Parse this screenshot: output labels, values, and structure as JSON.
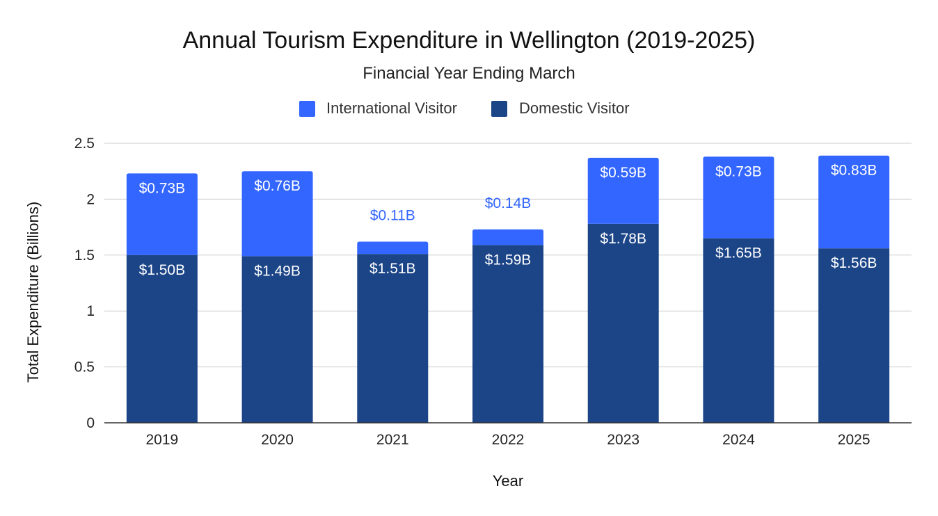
{
  "chart_data": {
    "type": "bar",
    "stacked": true,
    "title": "Annual Tourism Expenditure in Wellington (2019-2025)",
    "subtitle": "Financial Year Ending March",
    "xlabel": "Year",
    "ylabel": "Total Expenditure (Billions)",
    "ylim": [
      0,
      2.5
    ],
    "yticks": [
      0,
      0.5,
      1,
      1.5,
      2,
      2.5
    ],
    "ytick_labels": [
      "0",
      "0.5",
      "1",
      "1.5",
      "2",
      "2.5"
    ],
    "grid": true,
    "legend_position": "top",
    "categories": [
      "2019",
      "2020",
      "2021",
      "2022",
      "2023",
      "2024",
      "2025"
    ],
    "series": [
      {
        "name": "Domestic Visitor",
        "color": "#1c4587",
        "values": [
          1.5,
          1.49,
          1.51,
          1.59,
          1.78,
          1.65,
          1.56
        ],
        "labels": [
          "$1.50B",
          "$1.49B",
          "$1.51B",
          "$1.59B",
          "$1.78B",
          "$1.65B",
          "$1.56B"
        ]
      },
      {
        "name": "International Visitor",
        "color": "#3366ff",
        "values": [
          0.73,
          0.76,
          0.11,
          0.14,
          0.59,
          0.73,
          0.83
        ],
        "labels": [
          "$0.73B",
          "$0.76B",
          "$0.11B",
          "$0.14B",
          "$0.59B",
          "$0.73B",
          "$0.83B"
        ]
      }
    ],
    "legend_order": [
      "International Visitor",
      "Domestic Visitor"
    ]
  }
}
